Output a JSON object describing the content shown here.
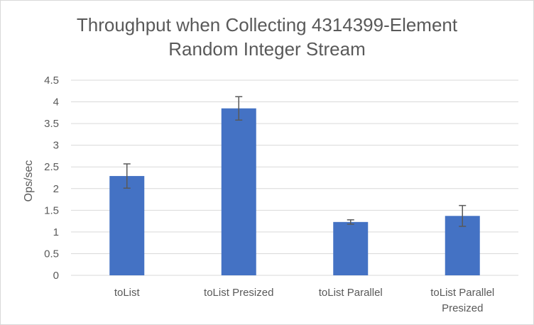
{
  "chart_data": {
    "type": "bar",
    "title_lines": [
      "Throughput when Collecting 4314399-Element",
      "Random Integer Stream"
    ],
    "xlabel": "",
    "ylabel": "Ops/sec",
    "categories": [
      [
        "toList"
      ],
      [
        "toList Presized"
      ],
      [
        "toList Parallel"
      ],
      [
        "toList Parallel",
        "Presized"
      ]
    ],
    "series": [
      {
        "values": [
          2.29,
          3.85,
          1.23,
          1.37
        ],
        "error": [
          0.28,
          0.27,
          0.05,
          0.24
        ],
        "color": "#4472c4"
      }
    ],
    "ylim": [
      0,
      4.5
    ],
    "yticks": [
      "0",
      "0.5",
      "1",
      "1.5",
      "2",
      "2.5",
      "3",
      "3.5",
      "4",
      "4.5"
    ],
    "grid": true,
    "legend": "none",
    "colors": {
      "bar": "#4472c4",
      "grid": "#d9d9d9",
      "errorbar": "#595959",
      "text": "#595959"
    }
  }
}
